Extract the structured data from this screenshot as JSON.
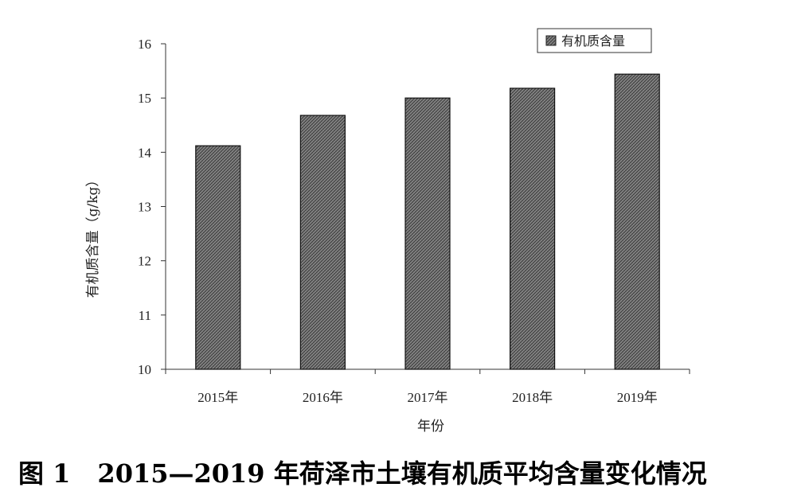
{
  "chart_data": {
    "type": "bar",
    "categories": [
      "2015年",
      "2016年",
      "2017年",
      "2018年",
      "2019年"
    ],
    "series": [
      {
        "name": "有机质含量",
        "values": [
          14.12,
          14.68,
          15.0,
          15.18,
          15.44
        ]
      }
    ],
    "xlabel": "年份",
    "ylabel": "有机质含量（g/kg）",
    "ylim": [
      10,
      16
    ],
    "yticks": [
      10,
      11,
      12,
      13,
      14,
      15,
      16
    ],
    "grid": false,
    "legend_position": "top-right",
    "bar_fill": "hatched gray"
  },
  "caption": {
    "figure_number": "图 1",
    "text": "2015—2019 年荷泽市土壤有机质平均含量变化情况"
  },
  "colors": {
    "bar_base": "#7a7a7a",
    "bar_pattern": "#3c3c3c",
    "axis": "#333333"
  }
}
